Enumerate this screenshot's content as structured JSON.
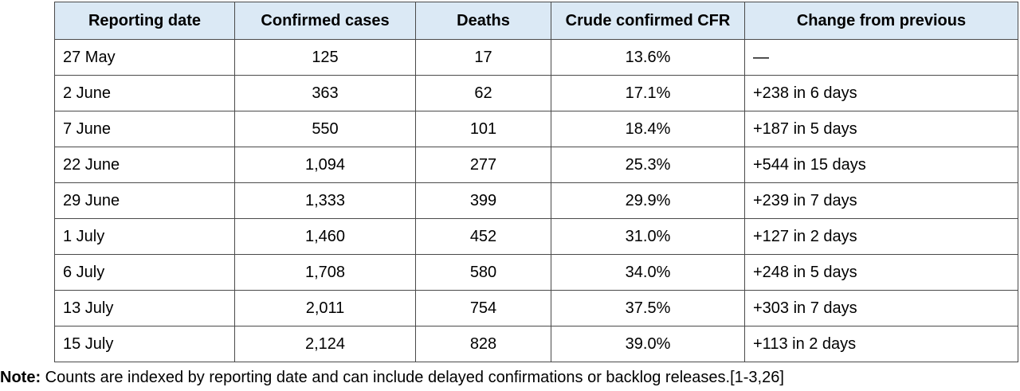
{
  "table": {
    "headers": [
      "Reporting date",
      "Confirmed cases",
      "Deaths",
      "Crude confirmed CFR",
      "Change from previous"
    ],
    "rows": [
      [
        "27 May",
        "125",
        "17",
        "13.6%",
        "—"
      ],
      [
        "2 June",
        "363",
        "62",
        "17.1%",
        "+238 in 6 days"
      ],
      [
        "7 June",
        "550",
        "101",
        "18.4%",
        "+187 in 5 days"
      ],
      [
        "22 June",
        "1,094",
        "277",
        "25.3%",
        "+544 in 15 days"
      ],
      [
        "29 June",
        "1,333",
        "399",
        "29.9%",
        "+239 in 7 days"
      ],
      [
        "1 July",
        "1,460",
        "452",
        "31.0%",
        "+127 in 2 days"
      ],
      [
        "6 July",
        "1,708",
        "580",
        "34.0%",
        "+248 in 5 days"
      ],
      [
        "13 July",
        "2,011",
        "754",
        "37.5%",
        "+303 in 7 days"
      ],
      [
        "15 July",
        "2,124",
        "828",
        "39.0%",
        "+113 in 2 days"
      ]
    ]
  },
  "note": {
    "label": "Note:",
    "text": " Counts are indexed by reporting date and can include delayed confirmations or backlog releases.[1-3,26]"
  },
  "colors": {
    "header_bg": "#dbe9f5",
    "border": "#4a4a4a"
  }
}
